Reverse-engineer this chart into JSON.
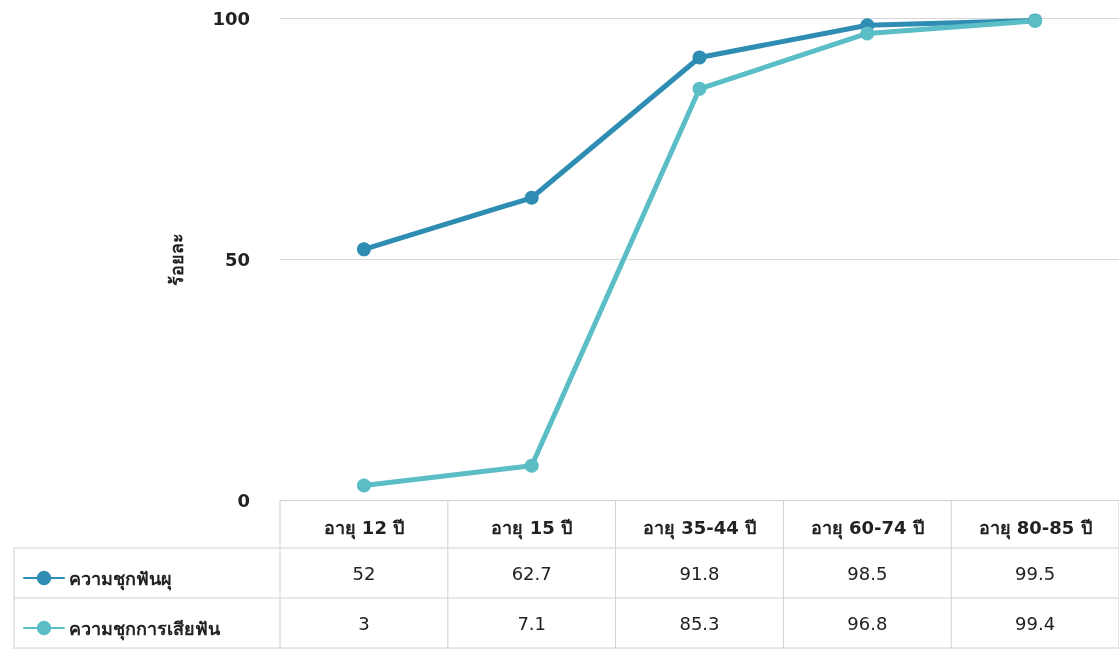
{
  "chart_data": {
    "type": "line",
    "ylabel": "ร้อยละ",
    "categories": [
      "อายุ 12 ปี",
      "อายุ 15 ปี",
      "อายุ 35-44 ปี",
      "อายุ 60-74 ปี",
      "อายุ 80-85 ปี"
    ],
    "series": [
      {
        "name": "ความชุกฟันผุ",
        "color": "#2f8db3",
        "values": [
          52,
          62.7,
          91.8,
          98.5,
          99.5
        ]
      },
      {
        "name": "ความชุกการเสียฟัน",
        "color": "#5bbdc5",
        "values": [
          3,
          7.1,
          85.3,
          96.8,
          99.4
        ]
      }
    ],
    "ylim": [
      0,
      100
    ],
    "yticks": [
      0,
      50,
      100
    ],
    "grid": "y",
    "legend": "bottom left",
    "marker": "circle",
    "line_style": "solid",
    "data_labels": true
  }
}
